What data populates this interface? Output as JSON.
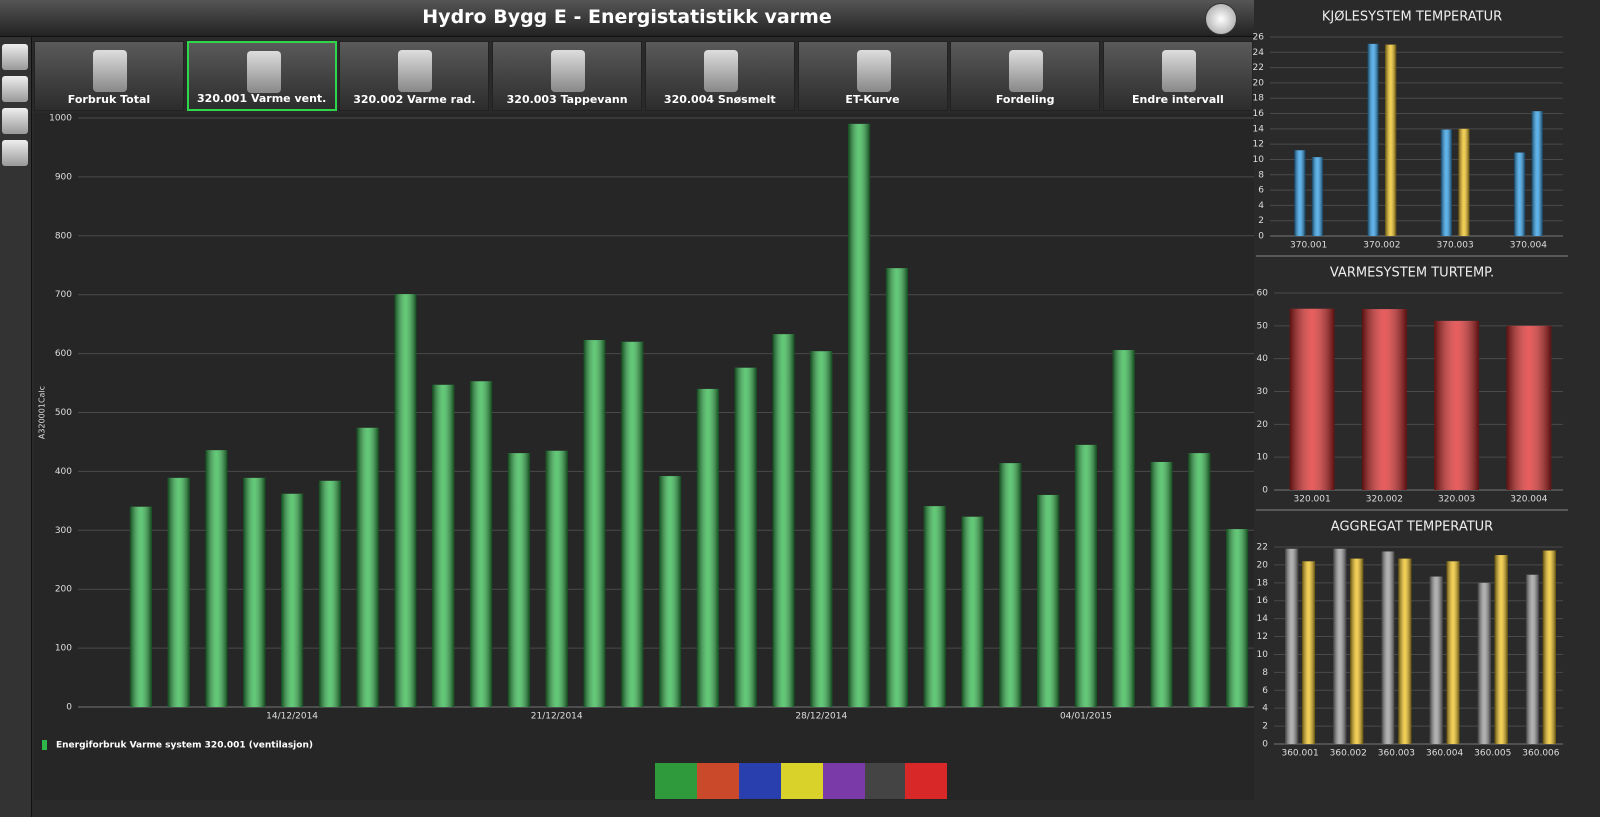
{
  "header": {
    "title": "Hydro Bygg E - Energistatistikk varme"
  },
  "toolbar": {
    "buttons": [
      "Forbruk Total",
      "320.001 Varme vent.",
      "320.002 Varme rad.",
      "320.003 Tappevann",
      "320.004 Snøsmelt",
      "ET-Kurve",
      "Fordeling",
      "Endre intervall"
    ],
    "selected": 1
  },
  "chart_data": [
    {
      "type": "bar",
      "y_label": "A320001Calc",
      "categories": [
        null,
        null,
        null,
        null,
        "14/12/2014",
        null,
        null,
        null,
        null,
        null,
        null,
        "21/12/2014",
        null,
        null,
        null,
        null,
        null,
        null,
        "28/12/2014",
        null,
        null,
        null,
        null,
        null,
        null,
        "04/01/2015",
        null,
        null,
        null,
        null
      ],
      "series": [
        {
          "name": "Energiforbruk Varme system 320.001 (ventilasjon)",
          "color": "#2eb84a",
          "values": [
            340,
            389,
            436,
            389,
            362,
            384,
            474,
            701,
            547,
            553,
            431,
            435,
            623,
            620,
            392,
            540,
            576,
            633,
            604,
            990,
            745,
            341,
            323,
            414,
            360,
            445,
            606,
            416,
            431,
            302
          ]
        }
      ],
      "ylim": [
        0,
        1000
      ],
      "yticks": [
        0,
        100,
        200,
        300,
        400,
        500,
        600,
        700,
        800,
        900,
        1000
      ],
      "grid": true,
      "legend": "bottom-left"
    },
    {
      "type": "bar",
      "title": "KJØLESYSTEM TEMPERATUR",
      "categories": [
        "370.001",
        "370.002",
        "370.003",
        "370.004"
      ],
      "series": [
        {
          "color": "#2a9de8",
          "values": [
            11.2,
            25.1,
            13.9,
            10.9
          ]
        },
        {
          "colors": [
            "#2a9de8",
            "#f2c21b",
            "#f2c21b",
            "#2a9de8"
          ],
          "values": [
            10.3,
            25.0,
            14.0,
            16.3
          ]
        }
      ],
      "ylim": [
        0,
        26
      ],
      "yticks": [
        0,
        2,
        4,
        6,
        8,
        10,
        12,
        14,
        16,
        18,
        20,
        22,
        24,
        26
      ],
      "grid": true
    },
    {
      "type": "bar",
      "title": "VARMESYSTEM TURTEMP.",
      "categories": [
        "320.001",
        "320.002",
        "320.003",
        "320.004"
      ],
      "series": [
        {
          "color": "#e02828",
          "values": [
            55.2,
            55.1,
            51.5,
            50.0
          ]
        }
      ],
      "ylim": [
        0,
        60
      ],
      "yticks": [
        0,
        10,
        20,
        30,
        40,
        50,
        60
      ],
      "grid": true
    },
    {
      "type": "bar",
      "title": "AGGREGAT TEMPERATUR",
      "categories": [
        "360.001",
        "360.002",
        "360.003",
        "360.004",
        "360.005",
        "360.006"
      ],
      "series": [
        {
          "color": "#9a9a9a",
          "values": [
            21.8,
            21.8,
            21.5,
            18.7,
            18.0,
            18.9
          ]
        },
        {
          "color": "#f2c21b",
          "values": [
            20.4,
            20.7,
            20.7,
            20.4,
            21.1,
            21.6
          ]
        }
      ],
      "ylim": [
        0,
        22
      ],
      "yticks": [
        0,
        2,
        4,
        6,
        8,
        10,
        12,
        14,
        16,
        18,
        20,
        22
      ],
      "grid": true
    }
  ]
}
